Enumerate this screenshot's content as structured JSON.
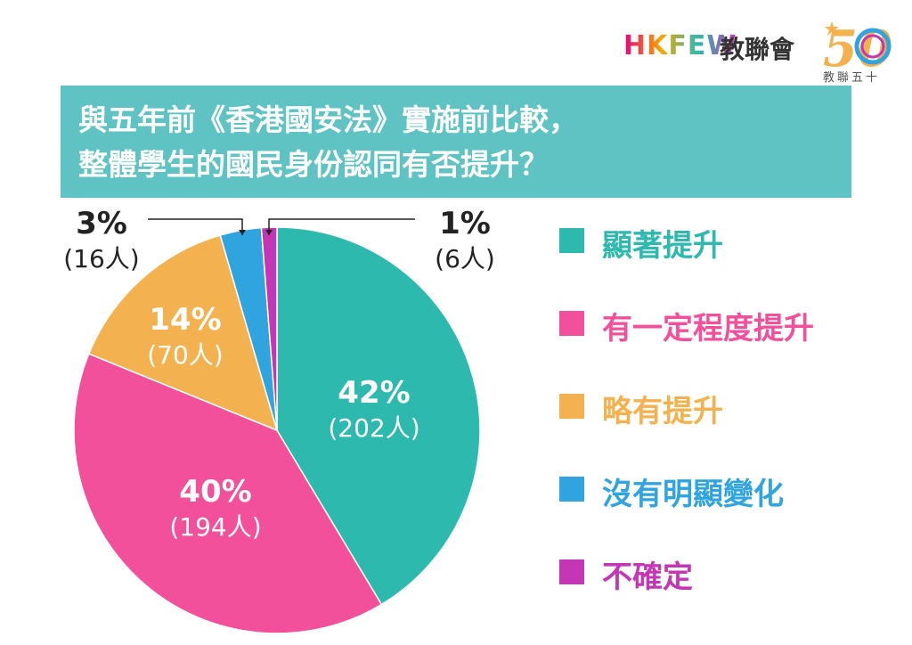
{
  "branding": {
    "logo_text": "HKFEW",
    "org_name": "教聯會",
    "anniversary_number": "50",
    "anniversary_text": "教聯五十"
  },
  "title": {
    "line1": "與五年前《香港國安法》實施前比較，",
    "line2": "整體學生的國民身份認同有否提升？"
  },
  "chart_data": {
    "type": "pie",
    "title": "與五年前《香港國安法》實施前比較，整體學生的國民身份認同有否提升？",
    "unit": "人",
    "start_angle_deg": 0,
    "direction": "clockwise",
    "legend_position": "right",
    "slices": [
      {
        "label": "顯著提升",
        "percent": "42%",
        "count": "(202人)",
        "value": 202,
        "color": "#2db9ad"
      },
      {
        "label": "有一定程度提升",
        "percent": "40%",
        "count": "(194人)",
        "value": 194,
        "color": "#f2509a"
      },
      {
        "label": "略有提升",
        "percent": "14%",
        "count": "(70人)",
        "value": 70,
        "color": "#f3b24f"
      },
      {
        "label": "沒有明顯變化",
        "percent": "3%",
        "count": "(16人)",
        "value": 16,
        "color": "#2fa4df"
      },
      {
        "label": "不確定",
        "percent": "1%",
        "count": "(6人)",
        "value": 6,
        "color": "#c336b5"
      }
    ]
  }
}
